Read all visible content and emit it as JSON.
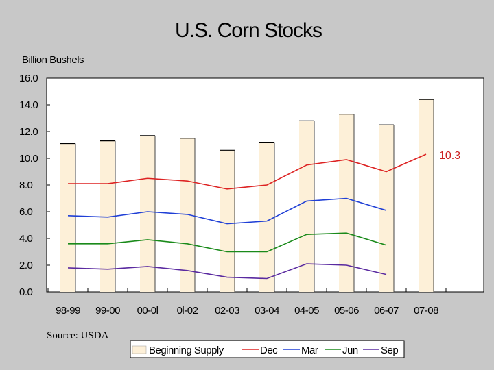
{
  "chart_data": {
    "type": "bar+line",
    "title": "U.S. Corn Stocks",
    "ylabel": "Billion Bushels",
    "xlabel": "",
    "ylim": [
      0,
      16
    ],
    "yticks": [
      "0.0",
      "2.0",
      "4.0",
      "6.0",
      "8.0",
      "10.0",
      "12.0",
      "14.0",
      "16.0"
    ],
    "categories": [
      "98-99",
      "99-00",
      "00-0l",
      "0l-02",
      "02-03",
      "03-04",
      "04-05",
      "05-06",
      "06-07",
      "07-08"
    ],
    "bar_series": {
      "name": "Beginning Supply",
      "color": "#fdf0d8",
      "values": [
        11.1,
        11.3,
        11.7,
        11.5,
        10.6,
        11.2,
        12.8,
        13.3,
        12.5,
        14.4
      ]
    },
    "series": [
      {
        "name": "Dec",
        "color": "#dd2222",
        "values": [
          8.1,
          8.1,
          8.5,
          8.3,
          7.7,
          8.0,
          9.5,
          9.9,
          9.0,
          10.3
        ]
      },
      {
        "name": "Mar",
        "color": "#1f3fd6",
        "values": [
          5.7,
          5.6,
          6.0,
          5.8,
          5.1,
          5.3,
          6.8,
          7.0,
          6.1,
          null
        ]
      },
      {
        "name": "Jun",
        "color": "#1a8a1a",
        "values": [
          3.6,
          3.6,
          3.9,
          3.6,
          3.0,
          3.0,
          4.3,
          4.4,
          3.5,
          null
        ]
      },
      {
        "name": "Sep",
        "color": "#5a2aa0",
        "values": [
          1.8,
          1.7,
          1.9,
          1.6,
          1.1,
          1.0,
          2.1,
          2.0,
          1.3,
          null
        ]
      }
    ],
    "annotation": {
      "text": "10.3",
      "color": "#cc2222"
    },
    "legend_position": "bottom-right",
    "grid": false
  },
  "source": "Source:  USDA"
}
